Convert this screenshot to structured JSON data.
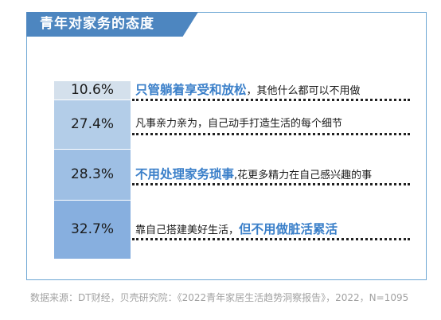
{
  "header": {
    "title": "青年对家务的态度"
  },
  "chart_data": {
    "type": "bar",
    "title": "青年对家务的态度",
    "unit": "%",
    "values": [
      10.6,
      27.4,
      28.3,
      32.7
    ],
    "value_labels": [
      "10.6%",
      "27.4%",
      "28.3%",
      "32.7%"
    ],
    "categories": [
      "只管躺着享受和放松，其他什么都可以不用做",
      "凡事亲力亲为，自己动手打造生活的每个细节",
      "不用处理家务琐事,花更多精力在自己感兴趣的事",
      "靠自己搭建美好生活，但不用做脏活累活"
    ],
    "rows": [
      {
        "value": 10.6,
        "label": "10.6%",
        "parts": [
          {
            "text": "只管躺着享受和放松",
            "highlight": true
          },
          {
            "text": "，其他什么都可以不用做",
            "highlight": false
          }
        ]
      },
      {
        "value": 27.4,
        "label": "27.4%",
        "parts": [
          {
            "text": "凡事亲力亲为，自己动手打造生活的每个细节",
            "highlight": false
          }
        ]
      },
      {
        "value": 28.3,
        "label": "28.3%",
        "parts": [
          {
            "text": "不用处理家务琐事",
            "highlight": true
          },
          {
            "text": ",花更多精力在自己感兴趣的事",
            "highlight": false
          }
        ]
      },
      {
        "value": 32.7,
        "label": "32.7%",
        "parts": [
          {
            "text": "靠自己搭建美好生活，",
            "highlight": false
          },
          {
            "text": "但不用做脏活累活",
            "highlight": true
          }
        ]
      }
    ],
    "colors": {
      "bars": [
        "#d4e0ec",
        "#b3cde8",
        "#9ebfe4",
        "#87afdf"
      ],
      "highlight": "#3a7fc9",
      "accent": "#4d86c0",
      "frame": "#6da7d4"
    }
  },
  "footer": {
    "source": "数据来源：DT财经，贝壳研究院：《2022青年家居生活趋势洞察报告》，2022，N=1095"
  }
}
